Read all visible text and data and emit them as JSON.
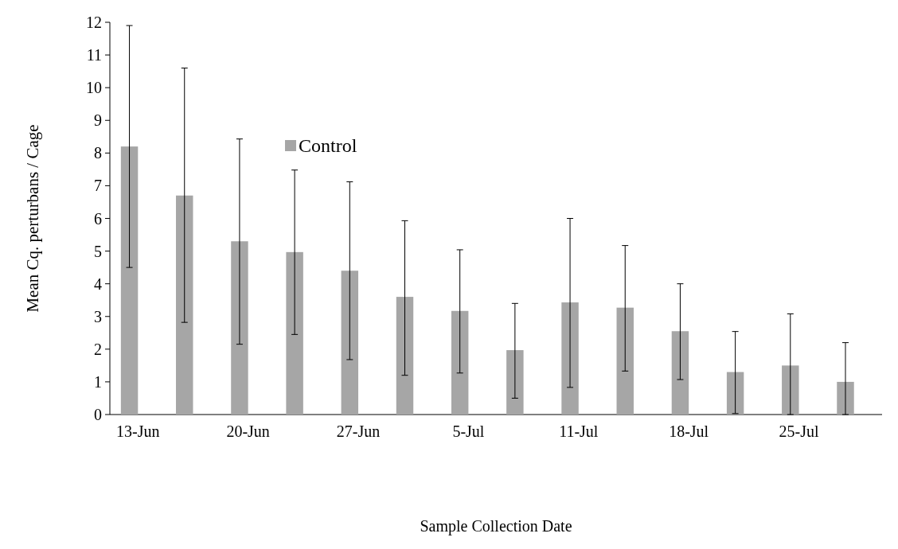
{
  "chart_data": {
    "type": "bar",
    "xlabel": "Sample Collection Date",
    "ylabel": "Mean Cq. perturbans / Cage",
    "categories": [
      "13-Jun",
      null,
      "20-Jun",
      null,
      "27-Jun",
      null,
      "5-Jul",
      null,
      "11-Jul",
      null,
      "18-Jul",
      null,
      "25-Jul",
      null
    ],
    "series": [
      {
        "name": "Control",
        "color": "#a6a6a6",
        "values": [
          8.2,
          6.7,
          5.3,
          4.97,
          4.4,
          3.6,
          3.17,
          1.97,
          3.43,
          3.27,
          2.55,
          1.3,
          1.5,
          1.0
        ],
        "errors": [
          [
            4.5,
            11.9
          ],
          [
            2.82,
            10.6
          ],
          [
            2.15,
            8.43
          ],
          [
            2.45,
            7.48
          ],
          [
            1.68,
            7.12
          ],
          [
            1.2,
            5.93
          ],
          [
            1.27,
            5.04
          ],
          [
            0.5,
            3.4
          ],
          [
            0.83,
            6.0
          ],
          [
            1.33,
            5.17
          ],
          [
            1.07,
            4.0
          ],
          [
            0.03,
            2.54
          ],
          [
            0,
            3.08
          ],
          [
            0,
            2.2
          ]
        ]
      },
      {
        "color": "#000000",
        "values": [
          0,
          0,
          0,
          0,
          0,
          0,
          0,
          0,
          0,
          0,
          0,
          0,
          0,
          0
        ]
      }
    ],
    "ylim": [
      0,
      12
    ],
    "yticks": [
      0,
      1,
      2,
      3,
      4,
      5,
      6,
      7,
      8,
      9,
      10,
      11,
      12
    ],
    "grid": false,
    "legend": "top"
  }
}
